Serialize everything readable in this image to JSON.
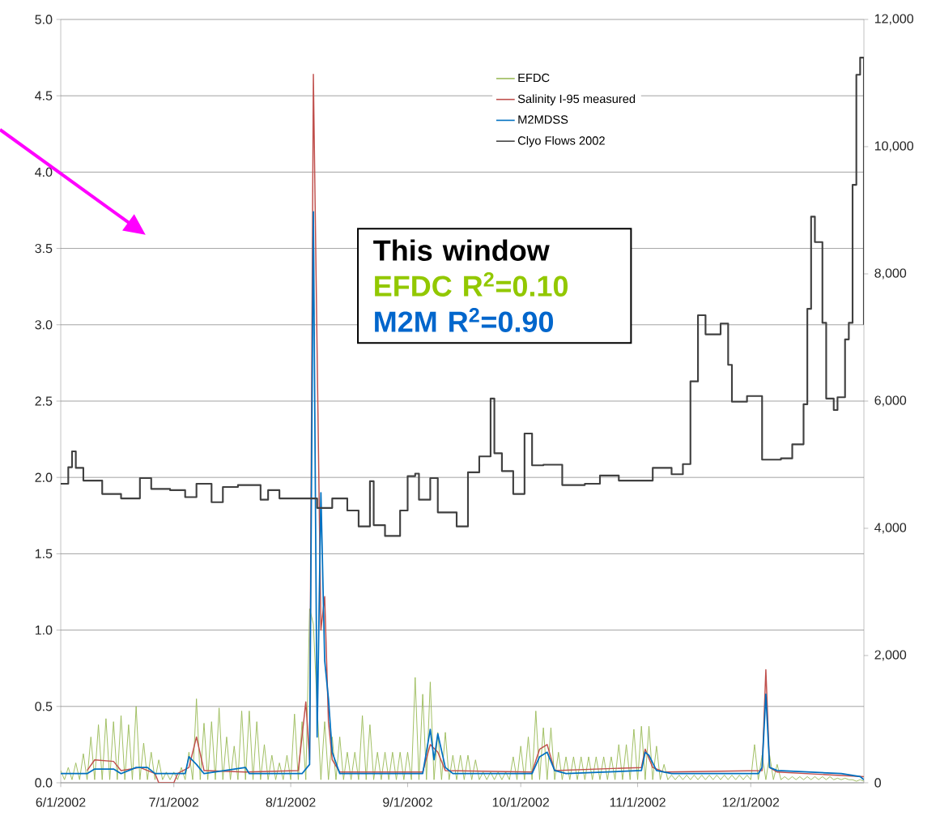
{
  "chart_data": {
    "type": "line",
    "xlim": [
      "2002-06-01",
      "2002-12-31"
    ],
    "xticks": [
      {
        "value": "2002-06-01",
        "label": "6/1/2002"
      },
      {
        "value": "2002-07-01",
        "label": "7/1/2002"
      },
      {
        "value": "2002-08-01",
        "label": "8/1/2002"
      },
      {
        "value": "2002-09-01",
        "label": "9/1/2002"
      },
      {
        "value": "2002-10-01",
        "label": "10/1/2002"
      },
      {
        "value": "2002-11-01",
        "label": "11/1/2002"
      },
      {
        "value": "2002-12-01",
        "label": "12/1/2002"
      }
    ],
    "ylim": [
      0,
      5
    ],
    "yticks": [
      {
        "value": 0,
        "label": "0.0"
      },
      {
        "value": 0.5,
        "label": "0.5"
      },
      {
        "value": 1,
        "label": "1.0"
      },
      {
        "value": 1.5,
        "label": "1.5"
      },
      {
        "value": 2,
        "label": "2.0"
      },
      {
        "value": 2.5,
        "label": "2.5"
      },
      {
        "value": 3,
        "label": "3.0"
      },
      {
        "value": 3.5,
        "label": "3.5"
      },
      {
        "value": 4,
        "label": "4.0"
      },
      {
        "value": 4.5,
        "label": "4.5"
      },
      {
        "value": 5,
        "label": "5.0"
      }
    ],
    "y2lim": [
      0,
      12000
    ],
    "y2ticks": [
      0,
      {
        "value": 2000,
        "label": "2,000"
      },
      {
        "value": 4000,
        "label": "4,000"
      },
      {
        "value": 6000,
        "label": "6,000"
      },
      {
        "value": 8000,
        "label": "8,000"
      },
      {
        "value": 10000,
        "label": "10,000"
      },
      {
        "value": 12000,
        "label": "12,000"
      }
    ],
    "grid": "y",
    "legend": "top",
    "marker": "none",
    "annotations": [
      "This window",
      "EFDC R$^{2}$=0.10",
      "M2M R$^{2}$=0.90"
    ],
    "series": [
      {
        "name": "EFDC",
        "color": "#9bbb59",
        "x": [
          "2002-06-01",
          "2002-06-02",
          "2002-06-03",
          "2002-06-04",
          "2002-06-05",
          "2002-06-06",
          "2002-06-07",
          "2002-06-08",
          "2002-06-09",
          "2002-06-10",
          "2002-06-11",
          "2002-06-12",
          "2002-06-13",
          "2002-06-14",
          "2002-06-15",
          "2002-06-16",
          "2002-06-17",
          "2002-06-18",
          "2002-06-19",
          "2002-06-20",
          "2002-06-21",
          "2002-06-22",
          "2002-06-23",
          "2002-06-24",
          "2002-06-25",
          "2002-06-26",
          "2002-06-27",
          "2002-06-28",
          "2002-06-29",
          "2002-06-30",
          "2002-07-01",
          "2002-07-02",
          "2002-07-03",
          "2002-07-04",
          "2002-07-05",
          "2002-07-06",
          "2002-07-07",
          "2002-07-08",
          "2002-07-09",
          "2002-07-10",
          "2002-07-11",
          "2002-07-12",
          "2002-07-13",
          "2002-07-14",
          "2002-07-15",
          "2002-07-16",
          "2002-07-17",
          "2002-07-18",
          "2002-07-19",
          "2002-07-20",
          "2002-07-21",
          "2002-07-22",
          "2002-07-23",
          "2002-07-24",
          "2002-07-25",
          "2002-07-26",
          "2002-07-27",
          "2002-07-28",
          "2002-07-29",
          "2002-07-30",
          "2002-07-31",
          "2002-08-01",
          "2002-08-02",
          "2002-08-03",
          "2002-08-04",
          "2002-08-05",
          "2002-08-06",
          "2002-08-07",
          "2002-08-08",
          "2002-08-09",
          "2002-08-10",
          "2002-08-11",
          "2002-08-12",
          "2002-08-13",
          "2002-08-14",
          "2002-08-15",
          "2002-08-16",
          "2002-08-17",
          "2002-08-18",
          "2002-08-19",
          "2002-08-20",
          "2002-08-21",
          "2002-08-22",
          "2002-08-23",
          "2002-08-24",
          "2002-08-25",
          "2002-08-26",
          "2002-08-27",
          "2002-08-28",
          "2002-08-29",
          "2002-08-30",
          "2002-08-31",
          "2002-09-01",
          "2002-09-02",
          "2002-09-03",
          "2002-09-04",
          "2002-09-05",
          "2002-09-06",
          "2002-09-07",
          "2002-09-08",
          "2002-09-09",
          "2002-09-10",
          "2002-09-11",
          "2002-09-12",
          "2002-09-13",
          "2002-09-14",
          "2002-09-15",
          "2002-09-16",
          "2002-09-17",
          "2002-09-18",
          "2002-09-19",
          "2002-09-20",
          "2002-09-21",
          "2002-09-22",
          "2002-09-23",
          "2002-09-24",
          "2002-09-25",
          "2002-09-26",
          "2002-09-27",
          "2002-09-28",
          "2002-09-29",
          "2002-09-30",
          "2002-10-01",
          "2002-10-02",
          "2002-10-03",
          "2002-10-04",
          "2002-10-05",
          "2002-10-06",
          "2002-10-07",
          "2002-10-08",
          "2002-10-09",
          "2002-10-10",
          "2002-10-11",
          "2002-10-12",
          "2002-10-13",
          "2002-10-14",
          "2002-10-15",
          "2002-10-16",
          "2002-10-17",
          "2002-10-18",
          "2002-10-19",
          "2002-10-20",
          "2002-10-21",
          "2002-10-22",
          "2002-10-23",
          "2002-10-24",
          "2002-10-25",
          "2002-10-26",
          "2002-10-27",
          "2002-10-28",
          "2002-10-29",
          "2002-10-30",
          "2002-10-31",
          "2002-11-01",
          "2002-11-02",
          "2002-11-03",
          "2002-11-04",
          "2002-11-05",
          "2002-11-06",
          "2002-11-07",
          "2002-11-08",
          "2002-11-09",
          "2002-11-10",
          "2002-11-11",
          "2002-11-12",
          "2002-11-13",
          "2002-11-14",
          "2002-11-15",
          "2002-11-16",
          "2002-11-17",
          "2002-11-18",
          "2002-11-19",
          "2002-11-20",
          "2002-11-21",
          "2002-11-22",
          "2002-11-23",
          "2002-11-24",
          "2002-11-25",
          "2002-11-26",
          "2002-11-27",
          "2002-11-28",
          "2002-11-29",
          "2002-11-30",
          "2002-12-01",
          "2002-12-02",
          "2002-12-03",
          "2002-12-04",
          "2002-12-05",
          "2002-12-06",
          "2002-12-07",
          "2002-12-08",
          "2002-12-09",
          "2002-12-10",
          "2002-12-11",
          "2002-12-12",
          "2002-12-13",
          "2002-12-14",
          "2002-12-15",
          "2002-12-16",
          "2002-12-17",
          "2002-12-18",
          "2002-12-19",
          "2002-12-20",
          "2002-12-21",
          "2002-12-22",
          "2002-12-23",
          "2002-12-24",
          "2002-12-25",
          "2002-12-26",
          "2002-12-27",
          "2002-12-28",
          "2002-12-29",
          "2002-12-30",
          "2002-12-31"
        ],
        "values": [
          0.08,
          0.02,
          0.1,
          0.02,
          0.13,
          0.02,
          0.19,
          0.02,
          0.3,
          0.02,
          0.38,
          0.02,
          0.42,
          0.02,
          0.4,
          0.02,
          0.44,
          0.02,
          0.38,
          0.02,
          0.5,
          0.02,
          0.26,
          0.02,
          0.2,
          0.02,
          0.15,
          0.02,
          0.07,
          0.02,
          0.07,
          0.02,
          0.1,
          0.02,
          0.2,
          0.02,
          0.55,
          0.02,
          0.39,
          0.02,
          0.4,
          0.02,
          0.49,
          0.02,
          0.3,
          0.02,
          0.24,
          0.02,
          0.47,
          0.02,
          0.47,
          0.02,
          0.4,
          0.02,
          0.25,
          0.02,
          0.18,
          0.02,
          0.13,
          0.02,
          0.18,
          0.02,
          0.45,
          0.02,
          0.4,
          0.02,
          1.14,
          1.04,
          0.5,
          0.02,
          0.4,
          0.02,
          0.3,
          0.02,
          0.3,
          0.02,
          0.2,
          0.02,
          0.2,
          0.02,
          0.44,
          0.02,
          0.38,
          0.02,
          0.2,
          0.02,
          0.2,
          0.02,
          0.2,
          0.02,
          0.2,
          0.02,
          0.2,
          0.02,
          0.69,
          0.02,
          0.58,
          0.02,
          0.66,
          0.02,
          0.33,
          0.02,
          0.33,
          0.02,
          0.18,
          0.02,
          0.18,
          0.02,
          0.18,
          0.02,
          0.15,
          0.02,
          0.07,
          0.02,
          0.07,
          0.02,
          0.07,
          0.02,
          0.07,
          0.02,
          0.17,
          0.02,
          0.24,
          0.02,
          0.3,
          0.02,
          0.47,
          0.02,
          0.36,
          0.02,
          0.36,
          0.02,
          0.2,
          0.02,
          0.17,
          0.02,
          0.17,
          0.02,
          0.17,
          0.02,
          0.17,
          0.02,
          0.17,
          0.02,
          0.17,
          0.02,
          0.17,
          0.02,
          0.25,
          0.02,
          0.25,
          0.02,
          0.35,
          0.02,
          0.37,
          0.02,
          0.37,
          0.02,
          0.24,
          0.02,
          0.12,
          0.02,
          0.05,
          0.02,
          0.05,
          0.02,
          0.05,
          0.02,
          0.05,
          0.02,
          0.05,
          0.02,
          0.05,
          0.02,
          0.05,
          0.02,
          0.05,
          0.02,
          0.05,
          0.02,
          0.05,
          0.02,
          0.05,
          0.02,
          0.25,
          0.02,
          0.18,
          0.02,
          0.18,
          0.02,
          0.12,
          0.02,
          0.04,
          0.02,
          0.04,
          0.02,
          0.04,
          0.02,
          0.04,
          0.02,
          0.04,
          0.02,
          0.04,
          0.02,
          0.04,
          0.02,
          0.03,
          0.02,
          0.03,
          0.02,
          0.02,
          0.01,
          0.02,
          0.01
        ]
      },
      {
        "name": "Salinity I-95 measured",
        "color": "#c0504d",
        "x": [
          "2002-06-08",
          "2002-06-10",
          "2002-06-15",
          "2002-06-17",
          "2002-06-22",
          "2002-06-26",
          "2002-06-27",
          "2002-07-01",
          "2002-07-02",
          "2002-07-05",
          "2002-07-07",
          "2002-07-09",
          "2002-07-20",
          "2002-08-03",
          "2002-08-05",
          "2002-08-06",
          "2002-08-07",
          "2002-08-09",
          "2002-08-10",
          "2002-08-11",
          "2002-08-12",
          "2002-08-14",
          "2002-09-05",
          "2002-09-07",
          "2002-09-09",
          "2002-09-11",
          "2002-10-04",
          "2002-10-06",
          "2002-10-08",
          "2002-10-10",
          "2002-11-02",
          "2002-11-03",
          "2002-11-05",
          "2002-11-08",
          "2002-12-04",
          "2002-12-05",
          "2002-12-06",
          "2002-12-08",
          "2002-12-31"
        ],
        "values": [
          0.08,
          0.15,
          0.14,
          0.08,
          0.1,
          0.06,
          0.0,
          0.0,
          0.06,
          0.1,
          0.3,
          0.08,
          0.07,
          0.08,
          0.53,
          0.15,
          4.64,
          1.0,
          1.22,
          0.4,
          0.15,
          0.07,
          0.07,
          0.25,
          0.2,
          0.08,
          0.07,
          0.22,
          0.25,
          0.08,
          0.1,
          0.22,
          0.1,
          0.07,
          0.08,
          0.74,
          0.1,
          0.07,
          0.04
        ]
      },
      {
        "name": "M2MDSS",
        "color": "#0070c0",
        "x": [
          "2002-06-01",
          "2002-06-08",
          "2002-06-10",
          "2002-06-15",
          "2002-06-17",
          "2002-06-21",
          "2002-06-24",
          "2002-06-26",
          "2002-07-04",
          "2002-07-05",
          "2002-07-07",
          "2002-07-09",
          "2002-07-20",
          "2002-07-21",
          "2002-08-04",
          "2002-08-06",
          "2002-08-07",
          "2002-08-08",
          "2002-08-09",
          "2002-08-10",
          "2002-08-11",
          "2002-08-12",
          "2002-08-14",
          "2002-09-05",
          "2002-09-07",
          "2002-09-08",
          "2002-09-09",
          "2002-09-11",
          "2002-09-13",
          "2002-10-04",
          "2002-10-06",
          "2002-10-08",
          "2002-10-10",
          "2002-10-13",
          "2002-11-02",
          "2002-11-03",
          "2002-11-04",
          "2002-11-06",
          "2002-11-10",
          "2002-12-03",
          "2002-12-04",
          "2002-12-05",
          "2002-12-06",
          "2002-12-08",
          "2002-12-25",
          "2002-12-30",
          "2002-12-31"
        ],
        "values": [
          0.06,
          0.06,
          0.09,
          0.09,
          0.06,
          0.1,
          0.1,
          0.06,
          0.06,
          0.17,
          0.12,
          0.06,
          0.1,
          0.06,
          0.06,
          0.12,
          3.74,
          0.3,
          1.9,
          0.8,
          0.55,
          0.2,
          0.06,
          0.06,
          0.35,
          0.15,
          0.32,
          0.1,
          0.06,
          0.06,
          0.17,
          0.2,
          0.08,
          0.06,
          0.08,
          0.2,
          0.18,
          0.08,
          0.06,
          0.06,
          0.1,
          0.58,
          0.1,
          0.08,
          0.06,
          0.04,
          0.02
        ]
      },
      {
        "name": "Clyo Flows 2002",
        "color": "#404040",
        "type": "step",
        "axis": "y2",
        "x": [
          "2002-06-01",
          "2002-06-03",
          "2002-06-04",
          "2002-06-05",
          "2002-06-07",
          "2002-06-12",
          "2002-06-17",
          "2002-06-22",
          "2002-06-25",
          "2002-06-30",
          "2002-07-04",
          "2002-07-07",
          "2002-07-11",
          "2002-07-14",
          "2002-07-18",
          "2002-07-24",
          "2002-07-26",
          "2002-07-29",
          "2002-08-05",
          "2002-08-08",
          "2002-08-12",
          "2002-08-16",
          "2002-08-19",
          "2002-08-22",
          "2002-08-23",
          "2002-08-26",
          "2002-08-30",
          "2002-09-01",
          "2002-09-03",
          "2002-09-04",
          "2002-09-07",
          "2002-09-09",
          "2002-09-14",
          "2002-09-17",
          "2002-09-20",
          "2002-09-23",
          "2002-09-24",
          "2002-09-26",
          "2002-09-29",
          "2002-10-02",
          "2002-10-04",
          "2002-10-07",
          "2002-10-12",
          "2002-10-18",
          "2002-10-22",
          "2002-10-27",
          "2002-11-05",
          "2002-11-10",
          "2002-11-13",
          "2002-11-15",
          "2002-11-17",
          "2002-11-19",
          "2002-11-23",
          "2002-11-25",
          "2002-11-26",
          "2002-11-30",
          "2002-12-04",
          "2002-12-09",
          "2002-12-12",
          "2002-12-15",
          "2002-12-16",
          "2002-12-17",
          "2002-12-18",
          "2002-12-20",
          "2002-12-21",
          "2002-12-23",
          "2002-12-24",
          "2002-12-26",
          "2002-12-27",
          "2002-12-28",
          "2002-12-29",
          "2002-12-30",
          "2002-12-31"
        ],
        "values": [
          4700,
          4960,
          5210,
          4950,
          4750,
          4540,
          4470,
          4790,
          4620,
          4600,
          4490,
          4700,
          4410,
          4650,
          4680,
          4450,
          4600,
          4470,
          4470,
          4320,
          4470,
          4280,
          4030,
          4740,
          4050,
          3880,
          4280,
          4820,
          4860,
          4450,
          4790,
          4250,
          4030,
          4880,
          5130,
          6040,
          5180,
          4900,
          4540,
          5490,
          4990,
          5000,
          4680,
          4700,
          4830,
          4750,
          4950,
          4850,
          5010,
          6310,
          7350,
          7050,
          7220,
          6570,
          5990,
          6080,
          5080,
          5100,
          5320,
          5950,
          7450,
          8900,
          8500,
          7230,
          6040,
          5860,
          6060,
          6970,
          7230,
          9400,
          11130,
          11400,
          7200
        ]
      }
    ]
  }
}
